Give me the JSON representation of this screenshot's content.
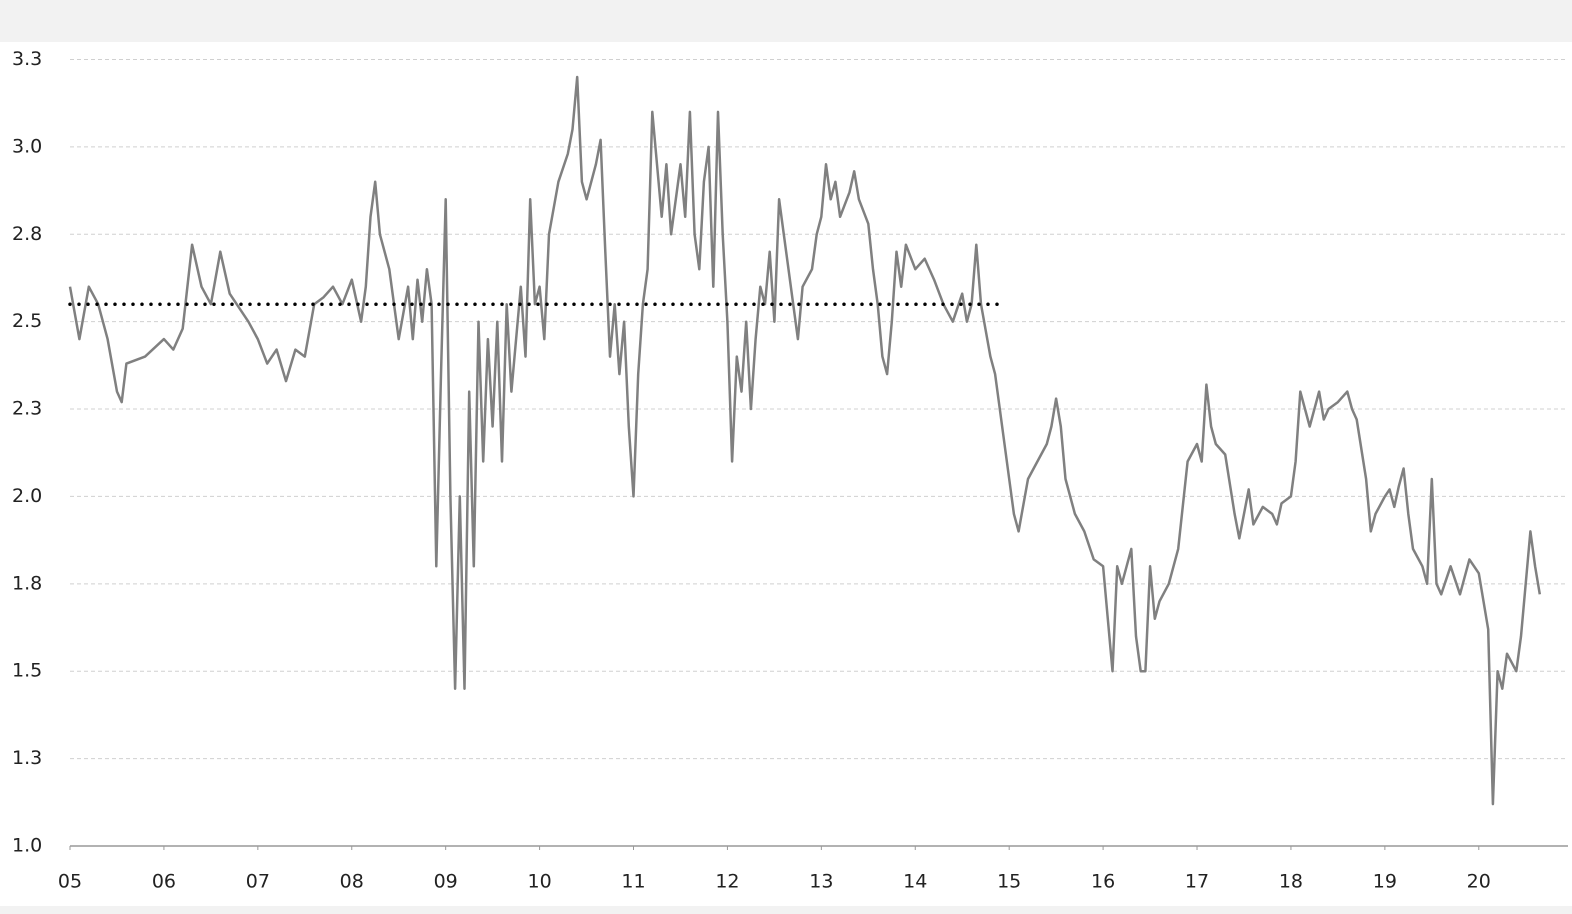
{
  "chart_data": {
    "type": "line",
    "xlim": [
      5,
      20.95
    ],
    "ylim": [
      1,
      3.3
    ],
    "xticks": [
      {
        "value": 5,
        "label": "05"
      },
      {
        "value": 6,
        "label": "06"
      },
      {
        "value": 7,
        "label": "07"
      },
      {
        "value": 8,
        "label": "08"
      },
      {
        "value": 9,
        "label": "09"
      },
      10,
      11,
      12,
      13,
      14,
      15,
      16,
      17,
      18,
      19,
      20
    ],
    "yticks": [
      {
        "value": 1,
        "label": "1.0"
      },
      {
        "value": 1.25,
        "label": "1.3"
      },
      1.5,
      {
        "value": 1.75,
        "label": "1.8"
      },
      {
        "value": 2,
        "label": "2.0"
      },
      {
        "value": 2.25,
        "label": "2.3"
      },
      2.5,
      {
        "value": 2.75,
        "label": "2.8"
      },
      {
        "value": 3,
        "label": "3.0"
      },
      {
        "value": 3.25,
        "label": "3.3"
      }
    ],
    "grid": true,
    "series": [
      {
        "color": "#808080",
        "style": "solid",
        "x": [
          5.0,
          5.1,
          5.2,
          5.3,
          5.4,
          5.5,
          5.55,
          5.6,
          5.8,
          6.0,
          6.1,
          6.2,
          6.3,
          6.4,
          6.5,
          6.6,
          6.7,
          6.9,
          7.0,
          7.1,
          7.2,
          7.3,
          7.4,
          7.5,
          7.6,
          7.7,
          7.8,
          7.9,
          8.0,
          8.1,
          8.15,
          8.2,
          8.25,
          8.3,
          8.4,
          8.5,
          8.6,
          8.65,
          8.7,
          8.75,
          8.8,
          8.85,
          8.9,
          8.95,
          9.0,
          9.05,
          9.1,
          9.15,
          9.2,
          9.25,
          9.3,
          9.35,
          9.4,
          9.45,
          9.5,
          9.55,
          9.6,
          9.65,
          9.7,
          9.8,
          9.85,
          9.9,
          9.95,
          10.0,
          10.05,
          10.1,
          10.2,
          10.3,
          10.35,
          10.4,
          10.45,
          10.5,
          10.6,
          10.65,
          10.7,
          10.75,
          10.8,
          10.85,
          10.9,
          10.95,
          11.0,
          11.05,
          11.1,
          11.15,
          11.2,
          11.3,
          11.35,
          11.4,
          11.5,
          11.55,
          11.6,
          11.65,
          11.7,
          11.75,
          11.8,
          11.85,
          11.9,
          11.95,
          12.0,
          12.05,
          12.1,
          12.15,
          12.2,
          12.25,
          12.3,
          12.35,
          12.4,
          12.45,
          12.5,
          12.55,
          12.6,
          12.7,
          12.75,
          12.8,
          12.9,
          12.95,
          13.0,
          13.05,
          13.1,
          13.15,
          13.2,
          13.3,
          13.35,
          13.4,
          13.5,
          13.55,
          13.6,
          13.65,
          13.7,
          13.75,
          13.8,
          13.85,
          13.9,
          14.0,
          14.1,
          14.2,
          14.3,
          14.4,
          14.5,
          14.55,
          14.6,
          14.65,
          14.7,
          14.8,
          14.85,
          14.9,
          15.0,
          15.05,
          15.1,
          15.2,
          15.3,
          15.4,
          15.45,
          15.5,
          15.55,
          15.6,
          15.7,
          15.8,
          15.9,
          16.0,
          16.05,
          16.1,
          16.15,
          16.2,
          16.3,
          16.35,
          16.4,
          16.45,
          16.5,
          16.55,
          16.6,
          16.7,
          16.8,
          16.9,
          17.0,
          17.05,
          17.1,
          17.15,
          17.2,
          17.3,
          17.4,
          17.45,
          17.5,
          17.55,
          17.6,
          17.7,
          17.8,
          17.85,
          17.9,
          18.0,
          18.05,
          18.1,
          18.15,
          18.2,
          18.3,
          18.35,
          18.4,
          18.5,
          18.6,
          18.65,
          18.7,
          18.8,
          18.85,
          18.9,
          19.0,
          19.05,
          19.1,
          19.15,
          19.2,
          19.25,
          19.3,
          19.4,
          19.45,
          19.5,
          19.55,
          19.6,
          19.7,
          19.8,
          19.9,
          20.0,
          20.1,
          20.15,
          20.2,
          20.25,
          20.3,
          20.4,
          20.45,
          20.5,
          20.55,
          20.6,
          20.65
        ],
        "values": [
          2.6,
          2.45,
          2.6,
          2.55,
          2.45,
          2.3,
          2.27,
          2.38,
          2.4,
          2.45,
          2.42,
          2.48,
          2.72,
          2.6,
          2.55,
          2.7,
          2.58,
          2.5,
          2.45,
          2.38,
          2.42,
          2.33,
          2.42,
          2.4,
          2.55,
          2.57,
          2.6,
          2.55,
          2.62,
          2.5,
          2.6,
          2.8,
          2.9,
          2.75,
          2.65,
          2.45,
          2.6,
          2.45,
          2.62,
          2.5,
          2.65,
          2.55,
          1.8,
          2.35,
          2.85,
          2.0,
          1.45,
          2.0,
          1.45,
          2.3,
          1.8,
          2.5,
          2.1,
          2.45,
          2.2,
          2.5,
          2.1,
          2.55,
          2.3,
          2.6,
          2.4,
          2.85,
          2.55,
          2.6,
          2.45,
          2.75,
          2.9,
          2.98,
          3.05,
          3.2,
          2.9,
          2.85,
          2.95,
          3.02,
          2.7,
          2.4,
          2.55,
          2.35,
          2.5,
          2.2,
          2.0,
          2.35,
          2.55,
          2.65,
          3.1,
          2.8,
          2.95,
          2.75,
          2.95,
          2.8,
          3.1,
          2.75,
          2.65,
          2.9,
          3.0,
          2.6,
          3.1,
          2.75,
          2.5,
          2.1,
          2.4,
          2.3,
          2.5,
          2.25,
          2.45,
          2.6,
          2.55,
          2.7,
          2.5,
          2.85,
          2.75,
          2.55,
          2.45,
          2.6,
          2.65,
          2.75,
          2.8,
          2.95,
          2.85,
          2.9,
          2.8,
          2.87,
          2.93,
          2.85,
          2.78,
          2.65,
          2.55,
          2.4,
          2.35,
          2.5,
          2.7,
          2.6,
          2.72,
          2.65,
          2.68,
          2.62,
          2.55,
          2.5,
          2.58,
          2.5,
          2.55,
          2.72,
          2.55,
          2.4,
          2.35,
          2.25,
          2.05,
          1.95,
          1.9,
          2.05,
          2.1,
          2.15,
          2.2,
          2.28,
          2.2,
          2.05,
          1.95,
          1.9,
          1.82,
          1.8,
          1.65,
          1.5,
          1.8,
          1.75,
          1.85,
          1.6,
          1.5,
          1.5,
          1.8,
          1.65,
          1.7,
          1.75,
          1.85,
          2.1,
          2.15,
          2.1,
          2.32,
          2.2,
          2.15,
          2.12,
          1.95,
          1.88,
          1.95,
          2.02,
          1.92,
          1.97,
          1.95,
          1.92,
          1.98,
          2.0,
          2.1,
          2.3,
          2.25,
          2.2,
          2.3,
          2.22,
          2.25,
          2.27,
          2.3,
          2.25,
          2.22,
          2.05,
          1.9,
          1.95,
          2.0,
          2.02,
          1.97,
          2.03,
          2.08,
          1.95,
          1.85,
          1.8,
          1.75,
          2.05,
          1.75,
          1.72,
          1.8,
          1.72,
          1.82,
          1.78,
          1.62,
          1.12,
          1.5,
          1.45,
          1.55,
          1.5,
          1.6,
          1.75,
          1.9,
          1.8,
          1.72
        ]
      },
      {
        "color": "#000000",
        "style": "dotted",
        "x": [
          5,
          14.93
        ],
        "values": [
          2.55,
          2.55
        ]
      }
    ]
  }
}
